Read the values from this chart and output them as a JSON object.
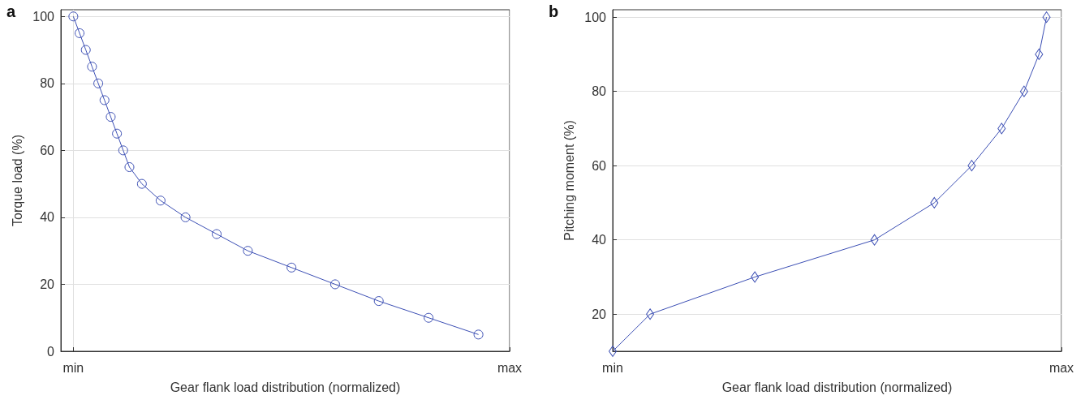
{
  "chart_data": [
    {
      "type": "line",
      "xlabel": "Gear flank load distribution (normalized)",
      "ylabel": "Torque load (%)",
      "annotations": [
        "a"
      ],
      "categories": [
        null,
        null,
        "min",
        null,
        null,
        null,
        null,
        null,
        null,
        null,
        null,
        null,
        null,
        null,
        null,
        null,
        null,
        null,
        null,
        null,
        null,
        null,
        null,
        null,
        null,
        null,
        null,
        null,
        null,
        null,
        null,
        null,
        null,
        null,
        null,
        null,
        null,
        null,
        null,
        null,
        null,
        null,
        null,
        null,
        null,
        null,
        null,
        null,
        null,
        null,
        null,
        null,
        null,
        null,
        null,
        null,
        null,
        null,
        null,
        null,
        null,
        null,
        null,
        null,
        null,
        null,
        null,
        null,
        null,
        null,
        null,
        null,
        "max"
      ],
      "series": [
        {
          "color": "#3c4fb4",
          "values": [
            null,
            null,
            100,
            95,
            90,
            85,
            80,
            75,
            70,
            65,
            60,
            55,
            null,
            50,
            null,
            null,
            45,
            null,
            null,
            null,
            40,
            null,
            null,
            null,
            null,
            35,
            null,
            null,
            null,
            null,
            30,
            null,
            null,
            null,
            null,
            null,
            null,
            25,
            null,
            null,
            null,
            null,
            null,
            null,
            20,
            null,
            null,
            null,
            null,
            null,
            null,
            15,
            null,
            null,
            null,
            null,
            null,
            null,
            null,
            10,
            null,
            null,
            null,
            null,
            null,
            null,
            null,
            5,
            null,
            null,
            null,
            null,
            null
          ]
        }
      ],
      "ylim": [
        0,
        102
      ],
      "yticks": [
        0,
        20,
        40,
        60,
        80,
        100
      ],
      "grid": true,
      "marker": "circle",
      "line_style": "solid"
    },
    {
      "type": "line",
      "xlabel": "Gear flank load distribution (normalized)",
      "ylabel": "Pitching moment (%)",
      "annotations": [
        "b"
      ],
      "categories": [
        "min",
        null,
        null,
        null,
        null,
        null,
        null,
        null,
        null,
        null,
        null,
        null,
        null,
        null,
        null,
        null,
        null,
        null,
        null,
        null,
        null,
        null,
        null,
        null,
        null,
        null,
        null,
        null,
        null,
        null,
        null,
        null,
        null,
        null,
        null,
        null,
        null,
        null,
        null,
        null,
        null,
        null,
        null,
        null,
        null,
        null,
        null,
        null,
        null,
        null,
        null,
        null,
        null,
        null,
        null,
        null,
        null,
        null,
        null,
        null,
        "max"
      ],
      "series": [
        {
          "color": "#3c4fb4",
          "values": [
            10,
            null,
            null,
            null,
            null,
            20,
            null,
            null,
            null,
            null,
            null,
            null,
            null,
            null,
            null,
            null,
            null,
            null,
            null,
            30,
            null,
            null,
            null,
            null,
            null,
            null,
            null,
            null,
            null,
            null,
            null,
            null,
            null,
            null,
            null,
            40,
            null,
            null,
            null,
            null,
            null,
            null,
            null,
            50,
            null,
            null,
            null,
            null,
            60,
            null,
            null,
            null,
            70,
            null,
            null,
            80,
            null,
            90,
            100,
            null,
            null
          ]
        }
      ],
      "ylim": [
        10,
        102
      ],
      "yticks": [
        20,
        40,
        60,
        80,
        100
      ],
      "grid": true,
      "marker": "diamond",
      "line_style": "solid"
    }
  ]
}
